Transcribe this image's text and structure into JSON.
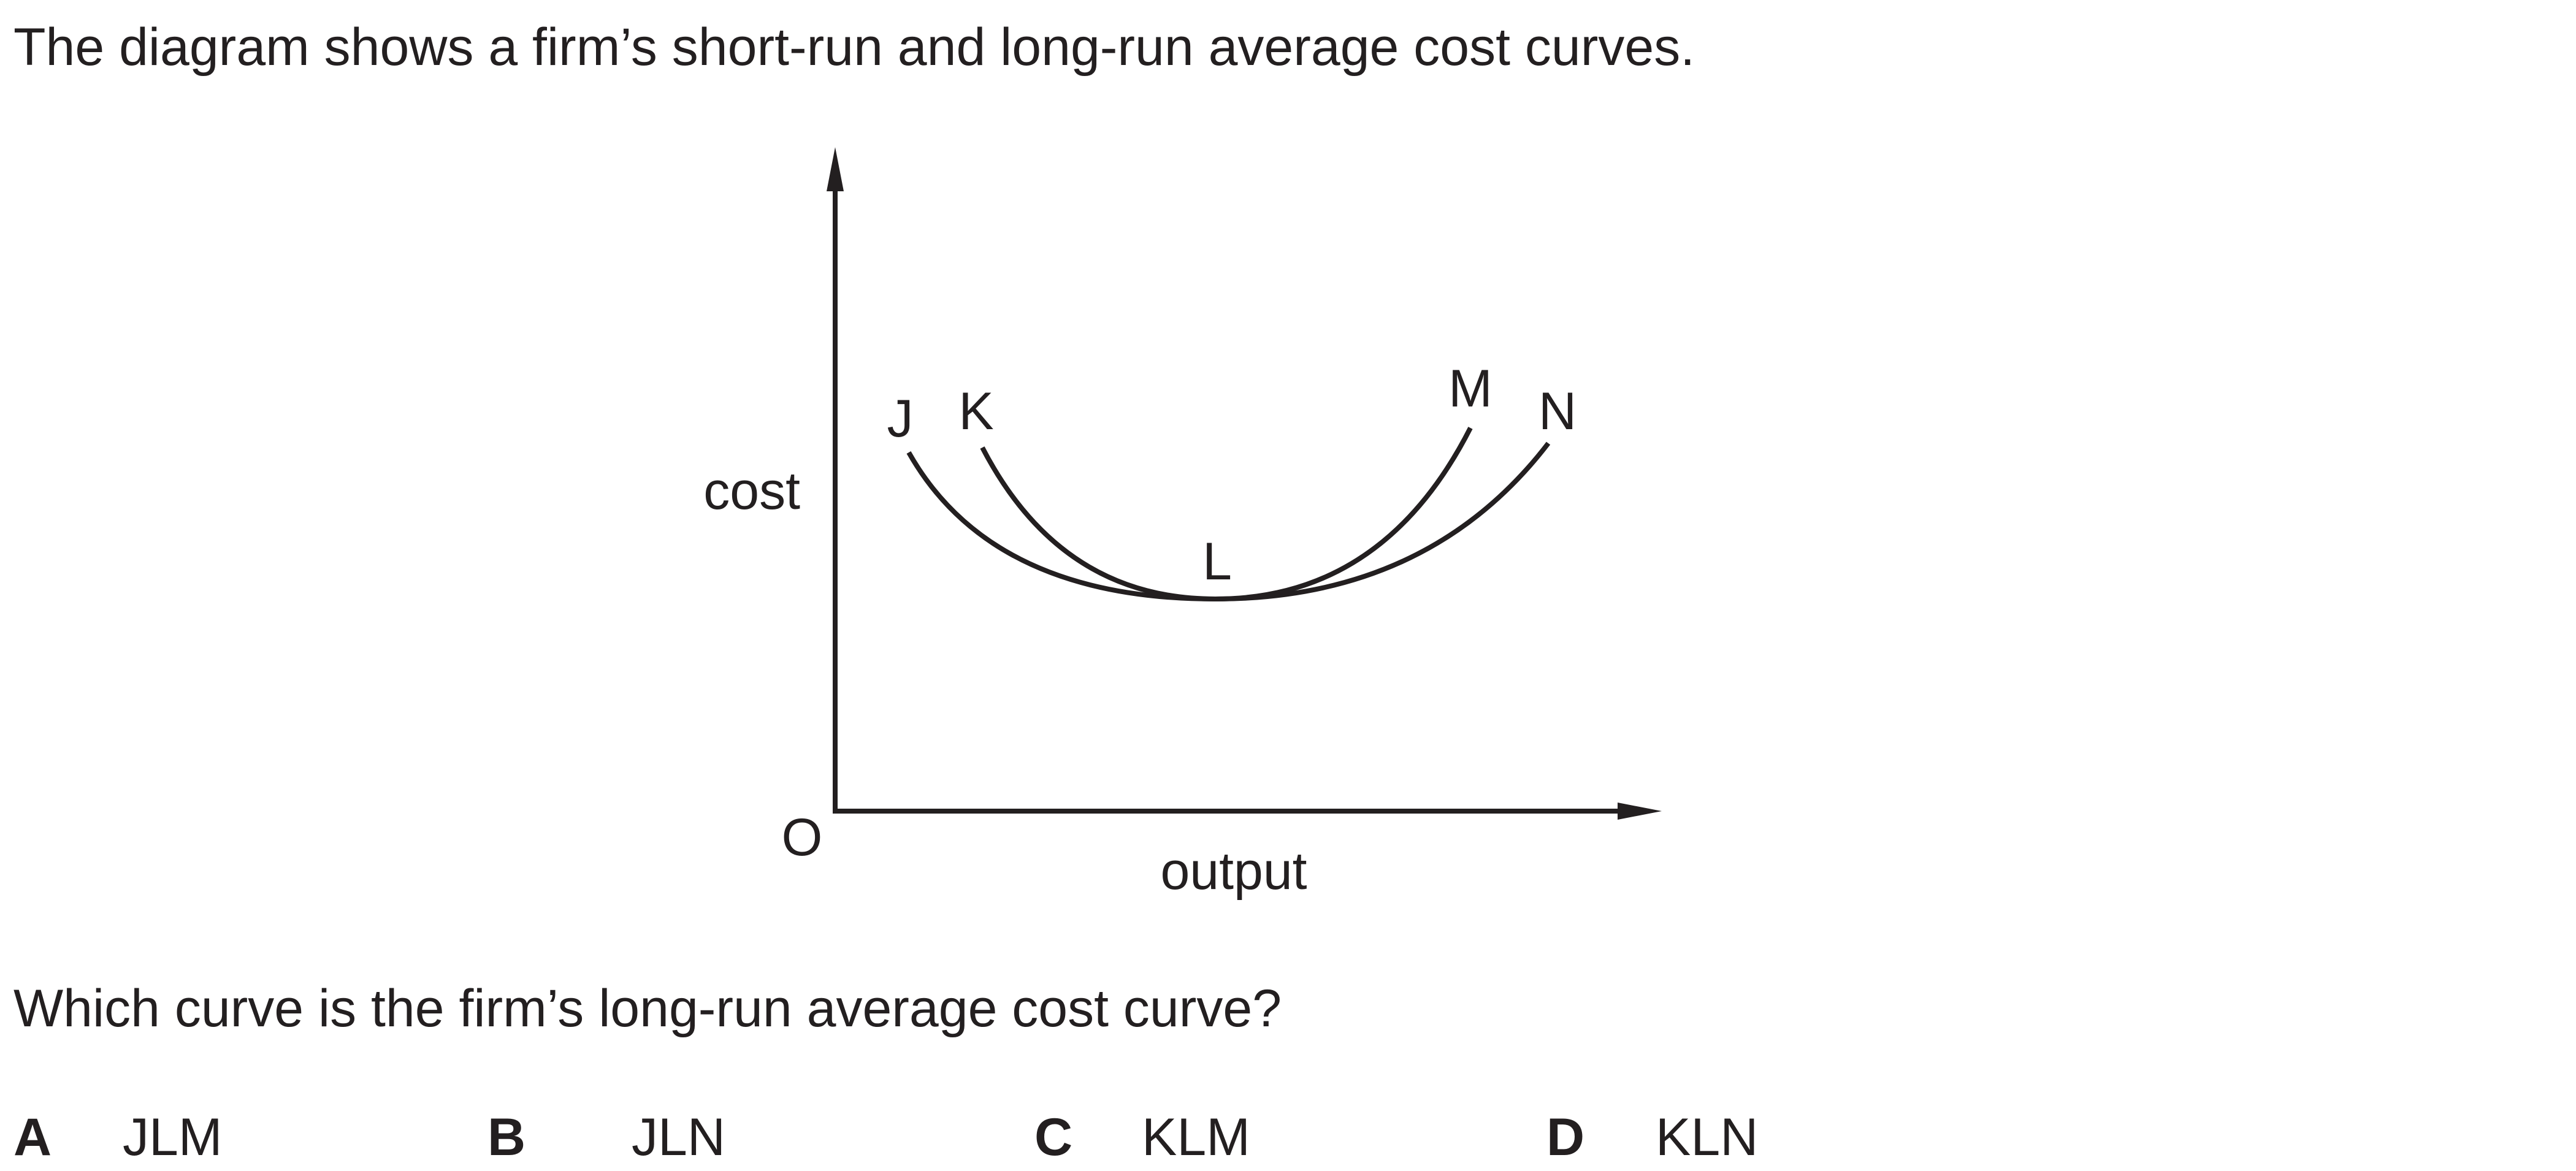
{
  "intro_text": "The diagram shows a firm’s short-run and long-run average cost curves.",
  "diagram": {
    "y_axis_label": "cost",
    "x_axis_label": "output",
    "origin_label": "O",
    "point_labels": {
      "J": "J",
      "K": "K",
      "L": "L",
      "M": "M",
      "N": "N"
    }
  },
  "question_text": "Which curve is the firm’s long-run average cost curve?",
  "options": [
    {
      "letter": "A",
      "answer": "JLM"
    },
    {
      "letter": "B",
      "answer": "JLN"
    },
    {
      "letter": "C",
      "answer": "KLM"
    },
    {
      "letter": "D",
      "answer": "KLN"
    }
  ]
}
